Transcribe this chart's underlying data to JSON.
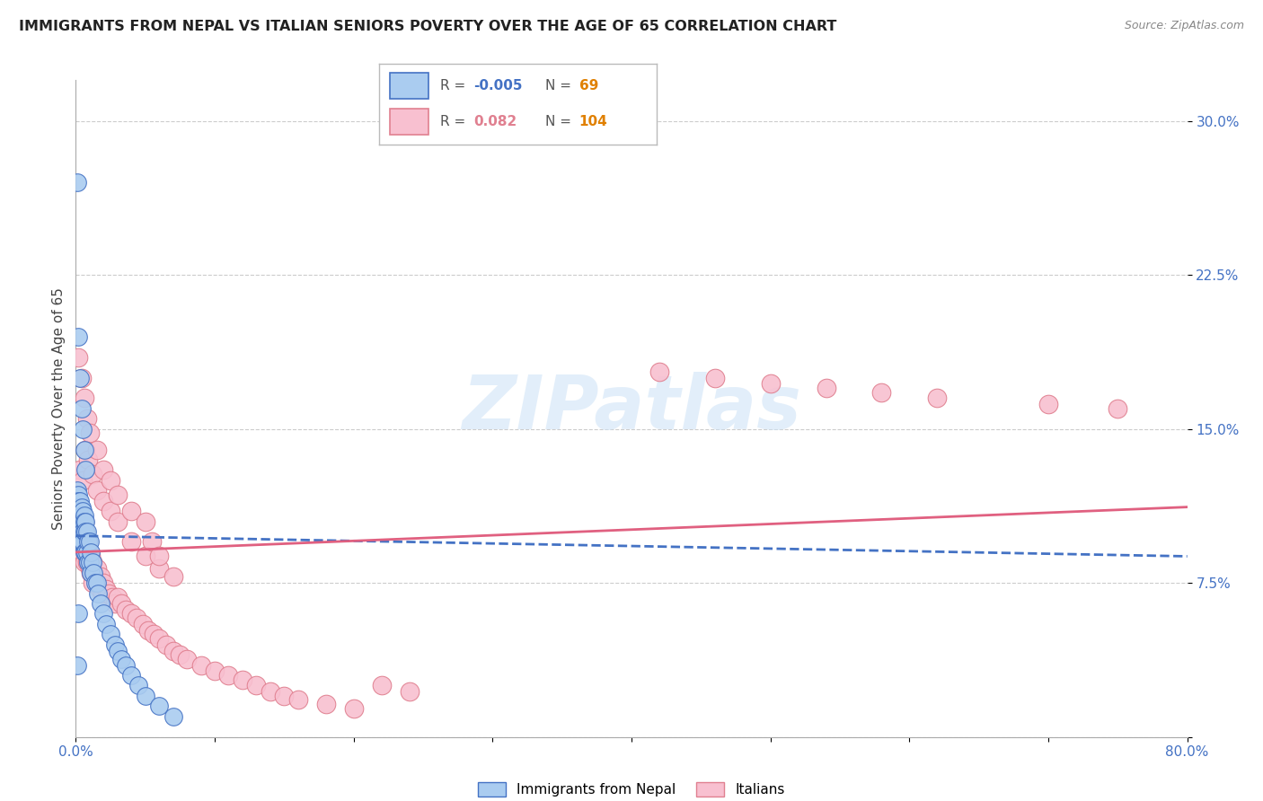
{
  "title": "IMMIGRANTS FROM NEPAL VS ITALIAN SENIORS POVERTY OVER THE AGE OF 65 CORRELATION CHART",
  "source": "Source: ZipAtlas.com",
  "ylabel": "Seniors Poverty Over the Age of 65",
  "xlim": [
    0.0,
    0.8
  ],
  "ylim": [
    0.0,
    0.32
  ],
  "yticks": [
    0.0,
    0.075,
    0.15,
    0.225,
    0.3
  ],
  "yticklabels": [
    "",
    "7.5%",
    "15.0%",
    "22.5%",
    "30.0%"
  ],
  "grid_color": "#cccccc",
  "legend": {
    "nepal_r": "-0.005",
    "nepal_n": "69",
    "italian_r": "0.082",
    "italian_n": "104"
  },
  "nepal_color": "#aaccf0",
  "nepal_edge_color": "#4472c4",
  "italian_color": "#f8c0d0",
  "italian_edge_color": "#e08090",
  "nepal_line_color": "#4472c4",
  "italian_line_color": "#e06080",
  "nepal_scatter_x": [
    0.001,
    0.001,
    0.001,
    0.001,
    0.001,
    0.002,
    0.002,
    0.002,
    0.002,
    0.002,
    0.002,
    0.002,
    0.003,
    0.003,
    0.003,
    0.003,
    0.003,
    0.003,
    0.004,
    0.004,
    0.004,
    0.004,
    0.004,
    0.005,
    0.005,
    0.005,
    0.005,
    0.006,
    0.006,
    0.006,
    0.006,
    0.007,
    0.007,
    0.007,
    0.008,
    0.008,
    0.009,
    0.009,
    0.01,
    0.01,
    0.011,
    0.011,
    0.012,
    0.013,
    0.014,
    0.015,
    0.016,
    0.018,
    0.02,
    0.022,
    0.025,
    0.028,
    0.03,
    0.033,
    0.036,
    0.04,
    0.045,
    0.05,
    0.06,
    0.07,
    0.002,
    0.003,
    0.004,
    0.005,
    0.006,
    0.007,
    0.001,
    0.001,
    0.002
  ],
  "nepal_scatter_y": [
    0.12,
    0.112,
    0.108,
    0.105,
    0.1,
    0.118,
    0.115,
    0.112,
    0.108,
    0.105,
    0.1,
    0.095,
    0.115,
    0.11,
    0.108,
    0.105,
    0.1,
    0.095,
    0.112,
    0.108,
    0.105,
    0.1,
    0.095,
    0.11,
    0.105,
    0.1,
    0.095,
    0.108,
    0.105,
    0.1,
    0.09,
    0.105,
    0.1,
    0.09,
    0.1,
    0.09,
    0.095,
    0.085,
    0.095,
    0.085,
    0.09,
    0.08,
    0.085,
    0.08,
    0.075,
    0.075,
    0.07,
    0.065,
    0.06,
    0.055,
    0.05,
    0.045,
    0.042,
    0.038,
    0.035,
    0.03,
    0.025,
    0.02,
    0.015,
    0.01,
    0.195,
    0.175,
    0.16,
    0.15,
    0.14,
    0.13,
    0.27,
    0.035,
    0.06
  ],
  "italian_scatter_x": [
    0.001,
    0.001,
    0.001,
    0.002,
    0.002,
    0.002,
    0.002,
    0.003,
    0.003,
    0.003,
    0.003,
    0.004,
    0.004,
    0.004,
    0.005,
    0.005,
    0.005,
    0.006,
    0.006,
    0.006,
    0.007,
    0.007,
    0.008,
    0.008,
    0.009,
    0.009,
    0.01,
    0.01,
    0.011,
    0.011,
    0.012,
    0.012,
    0.013,
    0.014,
    0.015,
    0.016,
    0.017,
    0.018,
    0.019,
    0.02,
    0.022,
    0.024,
    0.026,
    0.028,
    0.03,
    0.033,
    0.036,
    0.04,
    0.044,
    0.048,
    0.052,
    0.056,
    0.06,
    0.065,
    0.07,
    0.075,
    0.08,
    0.09,
    0.1,
    0.11,
    0.12,
    0.13,
    0.14,
    0.15,
    0.16,
    0.18,
    0.2,
    0.22,
    0.24,
    0.003,
    0.005,
    0.007,
    0.009,
    0.012,
    0.015,
    0.02,
    0.025,
    0.03,
    0.04,
    0.05,
    0.06,
    0.07,
    0.002,
    0.004,
    0.006,
    0.008,
    0.01,
    0.015,
    0.02,
    0.025,
    0.03,
    0.04,
    0.05,
    0.055,
    0.06,
    0.42,
    0.46,
    0.5,
    0.54,
    0.58,
    0.62,
    0.7,
    0.75
  ],
  "italian_scatter_y": [
    0.105,
    0.1,
    0.095,
    0.115,
    0.112,
    0.108,
    0.1,
    0.11,
    0.108,
    0.1,
    0.09,
    0.108,
    0.1,
    0.09,
    0.105,
    0.1,
    0.09,
    0.105,
    0.095,
    0.085,
    0.1,
    0.09,
    0.095,
    0.085,
    0.095,
    0.085,
    0.09,
    0.082,
    0.088,
    0.08,
    0.085,
    0.075,
    0.08,
    0.078,
    0.082,
    0.075,
    0.072,
    0.078,
    0.07,
    0.075,
    0.072,
    0.07,
    0.068,
    0.065,
    0.068,
    0.065,
    0.062,
    0.06,
    0.058,
    0.055,
    0.052,
    0.05,
    0.048,
    0.045,
    0.042,
    0.04,
    0.038,
    0.035,
    0.032,
    0.03,
    0.028,
    0.025,
    0.022,
    0.02,
    0.018,
    0.016,
    0.014,
    0.025,
    0.022,
    0.13,
    0.125,
    0.14,
    0.135,
    0.128,
    0.12,
    0.115,
    0.11,
    0.105,
    0.095,
    0.088,
    0.082,
    0.078,
    0.185,
    0.175,
    0.165,
    0.155,
    0.148,
    0.14,
    0.13,
    0.125,
    0.118,
    0.11,
    0.105,
    0.095,
    0.088,
    0.178,
    0.175,
    0.172,
    0.17,
    0.168,
    0.165,
    0.162,
    0.16
  ],
  "nepal_line_x": [
    0.0,
    0.8
  ],
  "nepal_line_y": [
    0.098,
    0.088
  ],
  "italian_line_x": [
    0.0,
    0.8
  ],
  "italian_line_y": [
    0.09,
    0.112
  ]
}
